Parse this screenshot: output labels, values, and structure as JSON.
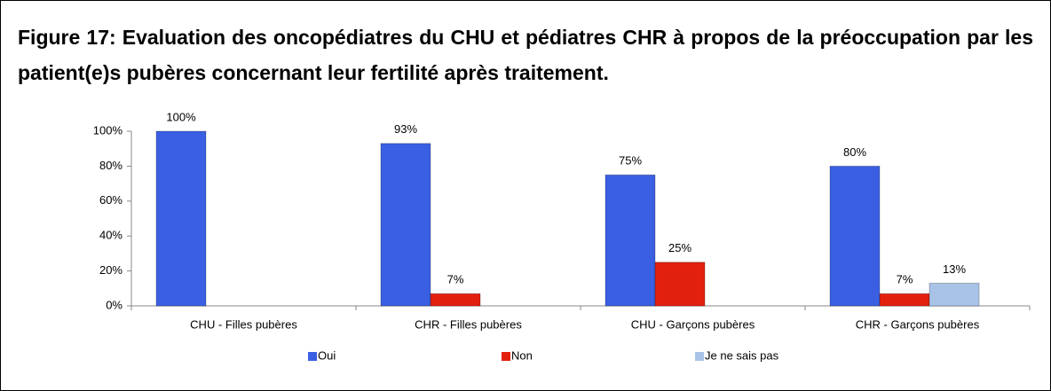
{
  "chart_data": {
    "type": "bar",
    "title": "Figure 17: Evaluation des oncopédiatres du CHU et pédiatres CHR à propos de la préoccupation par les patient(e)s pubères concernant leur fertilité après traitement.",
    "categories": [
      "CHU - Filles pubères",
      "CHR - Filles pubères",
      "CHU - Garçons pubères",
      "CHR - Garçons pubères"
    ],
    "series": [
      {
        "name": "Oui",
        "color": "#3a5fe2",
        "values": [
          100,
          93,
          75,
          80
        ],
        "value_labels": [
          "100%",
          "93%",
          "75%",
          "80%"
        ]
      },
      {
        "name": "Non",
        "color": "#e2200e",
        "values": [
          null,
          7,
          25,
          7
        ],
        "value_labels": [
          null,
          "7%",
          "25%",
          "7%"
        ]
      },
      {
        "name": "Je ne sais pas",
        "color": "#a8c3e6",
        "values": [
          null,
          null,
          null,
          13
        ],
        "value_labels": [
          null,
          null,
          null,
          "13%"
        ]
      }
    ],
    "ylim": [
      0,
      100
    ],
    "yticks": [
      {
        "value": 0,
        "label": "0%"
      },
      {
        "value": 20,
        "label": "20%"
      },
      {
        "value": 40,
        "label": "40%"
      },
      {
        "value": 60,
        "label": "60%"
      },
      {
        "value": 80,
        "label": "80%"
      },
      {
        "value": 100,
        "label": "100%"
      }
    ],
    "legend": "bottom"
  }
}
